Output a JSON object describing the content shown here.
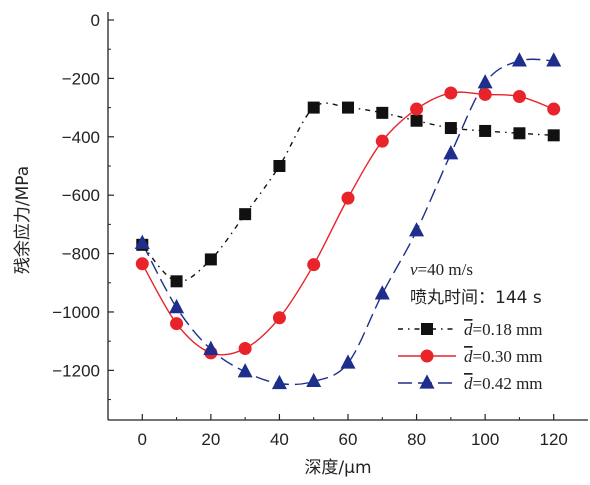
{
  "chart_data": {
    "type": "line",
    "xlabel": "深度/μm",
    "ylabel": "残余应力/MPa",
    "xlim": [
      -10,
      130
    ],
    "ylim": [
      -1370,
      0
    ],
    "x_ticks": [
      0,
      20,
      40,
      60,
      80,
      100,
      120
    ],
    "y_ticks": [
      0,
      -200,
      -400,
      -600,
      -800,
      -1000,
      -1200
    ],
    "y_tick_labels": [
      "0",
      "−200",
      "−400",
      "−600",
      "−800",
      "−1000",
      "−1200"
    ],
    "annotations": [
      "v=40 m/s",
      "喷丸时间：144 s"
    ],
    "legend_position": "bottom-right",
    "series": [
      {
        "name": "d=0.18 mm",
        "name_symbol": "d",
        "name_value": "=0.18 mm",
        "color": "#111111",
        "marker": "square",
        "line_style": "dash-dot",
        "x": [
          0,
          10,
          20,
          30,
          40,
          50,
          60,
          70,
          80,
          90,
          100,
          110,
          120
        ],
        "y": [
          -770,
          -895,
          -820,
          -665,
          -500,
          -300,
          -300,
          -318,
          -345,
          -370,
          -380,
          -388,
          -395
        ]
      },
      {
        "name": "d=0.30 mm",
        "name_symbol": "d",
        "name_value": "=0.30 mm",
        "color": "#e8232a",
        "marker": "circle",
        "line_style": "solid",
        "x": [
          0,
          10,
          20,
          30,
          40,
          50,
          60,
          70,
          80,
          90,
          100,
          110,
          120
        ],
        "y": [
          -835,
          -1040,
          -1140,
          -1125,
          -1020,
          -838,
          -610,
          -415,
          -305,
          -250,
          -255,
          -262,
          -305
        ]
      },
      {
        "name": "d=0.42 mm",
        "name_symbol": "d",
        "name_value": "=0.42 mm",
        "color": "#1d2f8a",
        "marker": "triangle",
        "line_style": "dash",
        "x": [
          0,
          10,
          20,
          30,
          40,
          50,
          60,
          70,
          80,
          90,
          100,
          110,
          120
        ],
        "y": [
          -765,
          -985,
          -1128,
          -1205,
          -1245,
          -1238,
          -1175,
          -938,
          -722,
          -458,
          -215,
          -140,
          -140
        ]
      }
    ]
  }
}
